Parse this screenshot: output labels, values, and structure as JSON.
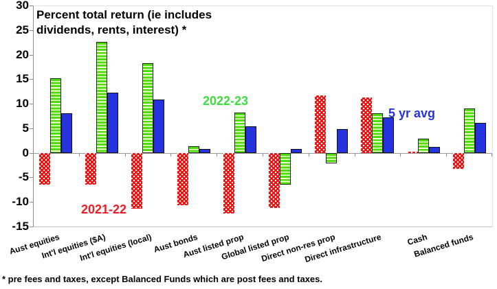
{
  "chart_data": {
    "type": "bar",
    "title": "Percent total return (ie includes dividends, rents, interest) *",
    "xlabel": "",
    "ylabel": "",
    "categories": [
      "Aust equities",
      "Int'l equities ($A)",
      "Int'l equities (local)",
      "Aust bonds",
      "Aust listed prop",
      "Global listed prop",
      "Direct non-res prop",
      "Direct infrastructure",
      "Cash",
      "Balanced funds"
    ],
    "series": [
      {
        "name": "2021-22",
        "color": "#ee1111",
        "pattern": "dots",
        "values": [
          -6.5,
          -6.5,
          -11.4,
          -10.7,
          -12.4,
          -11.2,
          11.7,
          11.3,
          0.2,
          -3.3
        ]
      },
      {
        "name": "2022-23",
        "color": "#4cdd00",
        "pattern": "stripes",
        "values": [
          15.2,
          22.6,
          18.3,
          1.3,
          8.2,
          -6.5,
          -2.1,
          8.0,
          2.9,
          9.0
        ]
      },
      {
        "name": "5 yr avg",
        "color": "#2433de",
        "pattern": "solid",
        "values": [
          8.1,
          12.2,
          10.9,
          0.8,
          5.4,
          0.8,
          4.8,
          7.2,
          1.2,
          6.1
        ]
      }
    ],
    "ylim": [
      -15,
      30
    ],
    "y_ticks": [
      30,
      25,
      20,
      15,
      10,
      5,
      0,
      -5,
      -10,
      -15
    ],
    "grid": false,
    "legend_position": "inline-annotations"
  },
  "footnote": "* pre fees and taxes, except Balanced Funds which are post fees and taxes."
}
